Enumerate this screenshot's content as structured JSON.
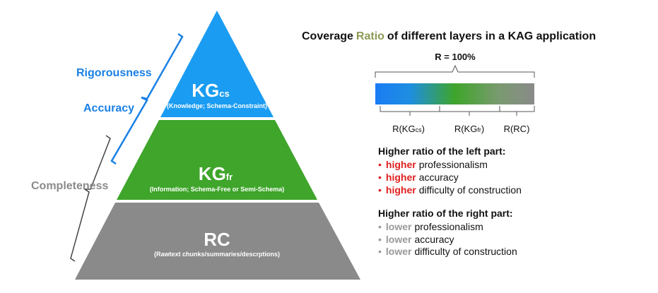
{
  "pyramid": {
    "layers": [
      {
        "name": "KG",
        "subscript": "cs",
        "description": "(Knowledge; Schema-Constraint)"
      },
      {
        "name": "KG",
        "subscript": "fr",
        "description": "(Information; Schema-Free or Semi-Schema)"
      },
      {
        "name": "RC",
        "description": "(Rawtext chunks/summaries/descrptions)"
      }
    ],
    "side_labels": [
      "Rigorousness",
      "Accuracy",
      "Completeness"
    ]
  },
  "coverage": {
    "title": [
      "Coverage",
      "Ratio",
      "of different layers in a KAG application"
    ],
    "total": "R = 100%",
    "segments": [
      {
        "label": "R(KG",
        "subscript": "cs",
        "suffix": ")"
      },
      {
        "label": "R(KG",
        "subscript": "fr",
        "suffix": ")"
      },
      {
        "label": "R(RC)"
      }
    ]
  },
  "left_part": {
    "heading": "Higher ratio of the left part:",
    "items": [
      {
        "keyword": "higher",
        "text": "professionalism"
      },
      {
        "keyword": "higher",
        "text": "accuracy"
      },
      {
        "keyword": "higher",
        "text": "difficulty of construction"
      }
    ]
  },
  "right_part": {
    "heading": "Higher ratio of the right part:",
    "items": [
      {
        "keyword": "lower",
        "text": "professionalism"
      },
      {
        "keyword": "lower",
        "text": "accuracy"
      },
      {
        "keyword": "lower",
        "text": "difficulty of construction"
      }
    ]
  }
}
